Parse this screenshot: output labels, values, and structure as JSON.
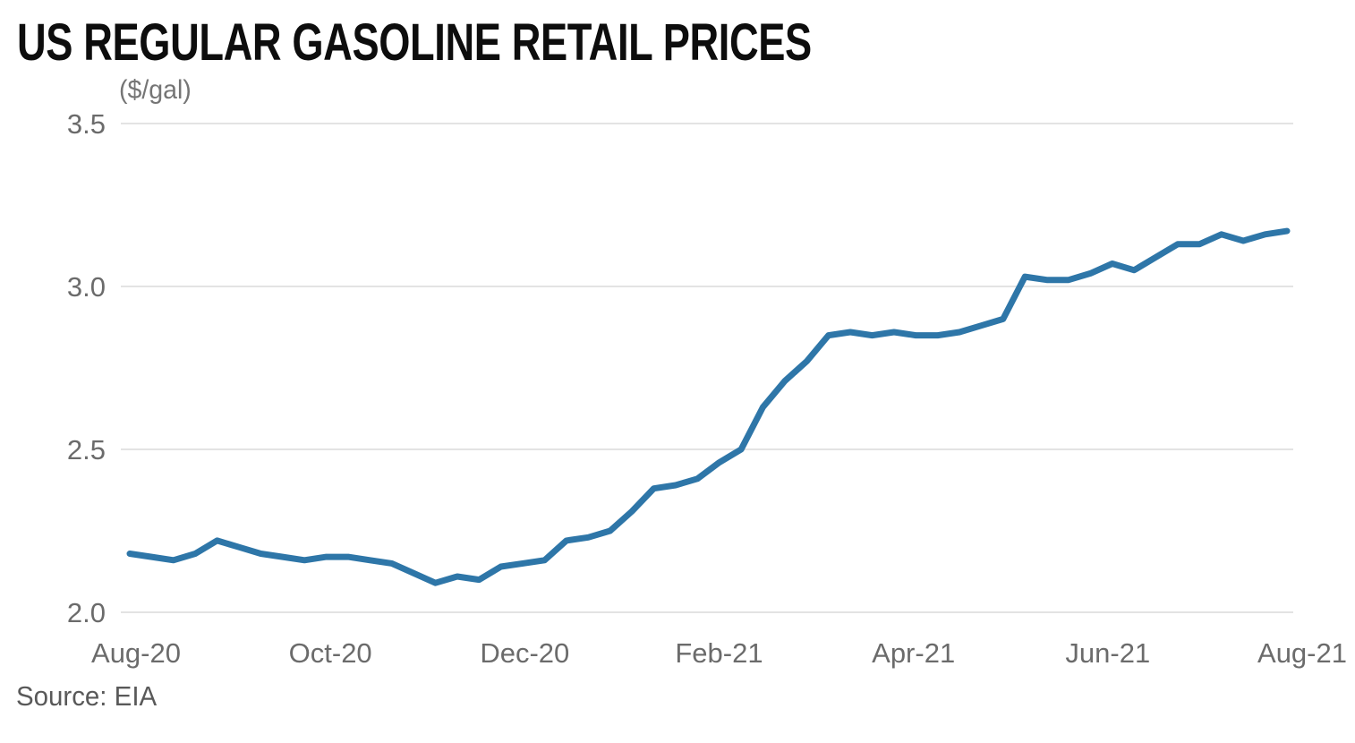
{
  "header": {
    "title": "US REGULAR GASOLINE RETAIL PRICES",
    "unit_label": "($/gal)"
  },
  "footer": {
    "source": "Source: EIA"
  },
  "colors": {
    "line": "#2e76a8",
    "grid": "#e3e3e3",
    "tick_text": "#6b6b6b",
    "title_text": "#0d0d0d",
    "subtitle_text": "#757575",
    "source_text": "#595959",
    "background": "#ffffff"
  },
  "chart_data": {
    "type": "line",
    "title": "US REGULAR GASOLINE RETAIL PRICES",
    "ylabel": "($/gal)",
    "xlabel": "",
    "source": "Source: EIA",
    "grid": "horizontal",
    "legend": "none",
    "ylim": [
      2.0,
      3.5
    ],
    "y_tick_labels": [
      "3.5",
      "3.0",
      "2.5",
      "2.0"
    ],
    "y_tick_values": [
      3.5,
      3.0,
      2.5,
      2.0
    ],
    "x_tick_labels": [
      "Aug-20",
      "Oct-20",
      "Dec-20",
      "Feb-21",
      "Apr-21",
      "Jun-21",
      "Aug-21"
    ],
    "series": [
      {
        "name": "US regular gasoline retail price ($/gal)",
        "x": [
          "2020-08-03",
          "2020-08-10",
          "2020-08-17",
          "2020-08-24",
          "2020-08-31",
          "2020-09-07",
          "2020-09-14",
          "2020-09-21",
          "2020-09-28",
          "2020-10-05",
          "2020-10-12",
          "2020-10-19",
          "2020-10-26",
          "2020-11-02",
          "2020-11-09",
          "2020-11-16",
          "2020-11-23",
          "2020-11-30",
          "2020-12-07",
          "2020-12-14",
          "2020-12-21",
          "2020-12-28",
          "2021-01-04",
          "2021-01-11",
          "2021-01-18",
          "2021-01-25",
          "2021-02-01",
          "2021-02-08",
          "2021-02-15",
          "2021-02-22",
          "2021-03-01",
          "2021-03-08",
          "2021-03-15",
          "2021-03-22",
          "2021-03-29",
          "2021-04-05",
          "2021-04-12",
          "2021-04-19",
          "2021-04-26",
          "2021-05-03",
          "2021-05-10",
          "2021-05-17",
          "2021-05-24",
          "2021-05-31",
          "2021-06-07",
          "2021-06-14",
          "2021-06-21",
          "2021-06-28",
          "2021-07-05",
          "2021-07-12",
          "2021-07-19",
          "2021-07-26",
          "2021-08-02",
          "2021-08-09"
        ],
        "values": [
          2.18,
          2.17,
          2.16,
          2.18,
          2.22,
          2.2,
          2.18,
          2.17,
          2.16,
          2.17,
          2.17,
          2.16,
          2.15,
          2.12,
          2.09,
          2.11,
          2.1,
          2.14,
          2.15,
          2.16,
          2.22,
          2.23,
          2.25,
          2.31,
          2.38,
          2.39,
          2.41,
          2.46,
          2.5,
          2.63,
          2.71,
          2.77,
          2.85,
          2.86,
          2.85,
          2.86,
          2.85,
          2.85,
          2.86,
          2.88,
          2.9,
          3.03,
          3.02,
          3.02,
          3.04,
          3.07,
          3.05,
          3.09,
          3.13,
          3.13,
          3.16,
          3.14,
          3.16,
          3.17
        ]
      }
    ]
  }
}
